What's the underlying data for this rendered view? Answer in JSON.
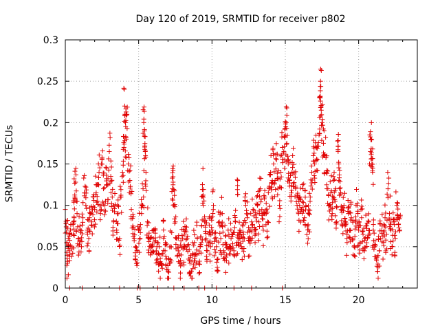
{
  "chart_data": {
    "type": "scatter",
    "title": "Day 120 of 2019, SRMTID for receiver p802",
    "xlabel": "GPS time / hours",
    "ylabel": "SRMTID / TECUs",
    "xlim": [
      0,
      24
    ],
    "ylim": [
      0,
      0.3
    ],
    "xticks": [
      0,
      5,
      10,
      15,
      20
    ],
    "yticks": [
      0,
      0.05,
      0.1,
      0.15,
      0.2,
      0.25,
      0.3
    ],
    "ytick_labels": [
      "0",
      "0.05",
      "0.1",
      "0.15",
      "0.2",
      "0.25",
      "0.3"
    ],
    "grid": true,
    "marker": "+",
    "color": "#e00000",
    "series": [
      {
        "name": "SRMTID",
        "points": [
          [
            0.05,
            0.078
          ],
          [
            0.1,
            0.055
          ],
          [
            0.15,
            0.03
          ],
          [
            0.2,
            0.06
          ],
          [
            0.3,
            0.045
          ],
          [
            0.35,
            0.07
          ],
          [
            0.45,
            0.05
          ],
          [
            0.55,
            0.065
          ],
          [
            0.6,
            0.085
          ],
          [
            0.65,
            0.11
          ],
          [
            0.7,
            0.128
          ],
          [
            0.8,
            0.09
          ],
          [
            0.9,
            0.06
          ],
          [
            1.0,
            0.075
          ],
          [
            1.1,
            0.05
          ],
          [
            1.2,
            0.085
          ],
          [
            1.3,
            0.115
          ],
          [
            1.4,
            0.1
          ],
          [
            1.5,
            0.07
          ],
          [
            1.6,
            0.06
          ],
          [
            1.7,
            0.09
          ],
          [
            1.8,
            0.08
          ],
          [
            1.9,
            0.11
          ],
          [
            2.0,
            0.095
          ],
          [
            2.1,
            0.125
          ],
          [
            2.2,
            0.105
          ],
          [
            2.3,
            0.14
          ],
          [
            2.4,
            0.09
          ],
          [
            2.5,
            0.155
          ],
          [
            2.6,
            0.12
          ],
          [
            2.7,
            0.1
          ],
          [
            2.8,
            0.145
          ],
          [
            2.9,
            0.125
          ],
          [
            3.0,
            0.165
          ],
          [
            3.1,
            0.135
          ],
          [
            3.2,
            0.11
          ],
          [
            3.3,
            0.08
          ],
          [
            3.4,
            0.1
          ],
          [
            3.5,
            0.07
          ],
          [
            3.6,
            0.09
          ],
          [
            3.7,
            0.06
          ],
          [
            3.8,
            0.11
          ],
          [
            3.9,
            0.14
          ],
          [
            4.0,
            0.17
          ],
          [
            4.05,
            0.22
          ],
          [
            4.1,
            0.2
          ],
          [
            4.15,
            0.18
          ],
          [
            4.2,
            0.21
          ],
          [
            4.3,
            0.15
          ],
          [
            4.4,
            0.13
          ],
          [
            4.5,
            0.095
          ],
          [
            4.6,
            0.075
          ],
          [
            4.7,
            0.06
          ],
          [
            4.8,
            0.05
          ],
          [
            4.9,
            0.045
          ],
          [
            5.0,
            0.07
          ],
          [
            5.1,
            0.06
          ],
          [
            5.2,
            0.09
          ],
          [
            5.3,
            0.12
          ],
          [
            5.35,
            0.2
          ],
          [
            5.4,
            0.19
          ],
          [
            5.45,
            0.165
          ],
          [
            5.5,
            0.14
          ],
          [
            5.6,
            0.08
          ],
          [
            5.7,
            0.06
          ],
          [
            5.8,
            0.04
          ],
          [
            5.9,
            0.05
          ],
          [
            6.0,
            0.06
          ],
          [
            6.1,
            0.07
          ],
          [
            6.2,
            0.045
          ],
          [
            6.3,
            0.035
          ],
          [
            6.4,
            0.05
          ],
          [
            6.5,
            0.03
          ],
          [
            6.6,
            0.04
          ],
          [
            6.7,
            0.06
          ],
          [
            6.8,
            0.045
          ],
          [
            6.9,
            0.035
          ],
          [
            7.0,
            0.02
          ],
          [
            7.1,
            0.03
          ],
          [
            7.2,
            0.05
          ],
          [
            7.3,
            0.12
          ],
          [
            7.35,
            0.128
          ],
          [
            7.4,
            0.1
          ],
          [
            7.5,
            0.08
          ],
          [
            7.6,
            0.06
          ],
          [
            7.7,
            0.045
          ],
          [
            7.8,
            0.03
          ],
          [
            7.9,
            0.04
          ],
          [
            8.0,
            0.06
          ],
          [
            8.1,
            0.05
          ],
          [
            8.2,
            0.07
          ],
          [
            8.3,
            0.06
          ],
          [
            8.4,
            0.035
          ],
          [
            8.5,
            0.03
          ],
          [
            8.6,
            0.02
          ],
          [
            8.7,
            0.04
          ],
          [
            8.8,
            0.055
          ],
          [
            8.9,
            0.04
          ],
          [
            9.0,
            0.06
          ],
          [
            9.1,
            0.03
          ],
          [
            9.2,
            0.05
          ],
          [
            9.3,
            0.075
          ],
          [
            9.35,
            0.125
          ],
          [
            9.4,
            0.1
          ],
          [
            9.5,
            0.08
          ],
          [
            9.6,
            0.06
          ],
          [
            9.7,
            0.045
          ],
          [
            9.8,
            0.065
          ],
          [
            9.9,
            0.05
          ],
          [
            10.0,
            0.07
          ],
          [
            10.1,
            0.1
          ],
          [
            10.2,
            0.06
          ],
          [
            10.3,
            0.05
          ],
          [
            10.4,
            0.035
          ],
          [
            10.5,
            0.08
          ],
          [
            10.6,
            0.06
          ],
          [
            10.7,
            0.09
          ],
          [
            10.8,
            0.045
          ],
          [
            10.9,
            0.055
          ],
          [
            11.0,
            0.04
          ],
          [
            11.1,
            0.07
          ],
          [
            11.2,
            0.05
          ],
          [
            11.3,
            0.06
          ],
          [
            11.4,
            0.065
          ],
          [
            11.5,
            0.045
          ],
          [
            11.6,
            0.08
          ],
          [
            11.7,
            0.055
          ],
          [
            11.75,
            0.13
          ],
          [
            11.8,
            0.06
          ],
          [
            11.9,
            0.07
          ],
          [
            12.0,
            0.05
          ],
          [
            12.1,
            0.075
          ],
          [
            12.2,
            0.06
          ],
          [
            12.3,
            0.1
          ],
          [
            12.4,
            0.085
          ],
          [
            12.5,
            0.06
          ],
          [
            12.6,
            0.07
          ],
          [
            12.7,
            0.08
          ],
          [
            12.8,
            0.095
          ],
          [
            12.9,
            0.07
          ],
          [
            13.0,
            0.085
          ],
          [
            13.1,
            0.1
          ],
          [
            13.2,
            0.08
          ],
          [
            13.3,
            0.12
          ],
          [
            13.4,
            0.095
          ],
          [
            13.5,
            0.07
          ],
          [
            13.6,
            0.11
          ],
          [
            13.7,
            0.09
          ],
          [
            13.8,
            0.08
          ],
          [
            13.9,
            0.12
          ],
          [
            14.0,
            0.14
          ],
          [
            14.1,
            0.11
          ],
          [
            14.2,
            0.15
          ],
          [
            14.3,
            0.13
          ],
          [
            14.4,
            0.155
          ],
          [
            14.5,
            0.12
          ],
          [
            14.6,
            0.1
          ],
          [
            14.7,
            0.14
          ],
          [
            14.8,
            0.17
          ],
          [
            14.9,
            0.165
          ],
          [
            15.0,
            0.185
          ],
          [
            15.05,
            0.2
          ],
          [
            15.1,
            0.175
          ],
          [
            15.2,
            0.15
          ],
          [
            15.3,
            0.13
          ],
          [
            15.4,
            0.115
          ],
          [
            15.5,
            0.16
          ],
          [
            15.6,
            0.14
          ],
          [
            15.7,
            0.12
          ],
          [
            15.8,
            0.1
          ],
          [
            15.9,
            0.09
          ],
          [
            16.0,
            0.11
          ],
          [
            16.1,
            0.095
          ],
          [
            16.2,
            0.12
          ],
          [
            16.3,
            0.085
          ],
          [
            16.4,
            0.1
          ],
          [
            16.5,
            0.075
          ],
          [
            16.6,
            0.09
          ],
          [
            16.7,
            0.11
          ],
          [
            16.8,
            0.14
          ],
          [
            16.9,
            0.16
          ],
          [
            17.0,
            0.15
          ],
          [
            17.1,
            0.17
          ],
          [
            17.2,
            0.155
          ],
          [
            17.3,
            0.185
          ],
          [
            17.35,
            0.23
          ],
          [
            17.4,
            0.25
          ],
          [
            17.45,
            0.215
          ],
          [
            17.5,
            0.2
          ],
          [
            17.6,
            0.175
          ],
          [
            17.7,
            0.16
          ],
          [
            17.8,
            0.14
          ],
          [
            17.9,
            0.12
          ],
          [
            18.0,
            0.1
          ],
          [
            18.1,
            0.115
          ],
          [
            18.2,
            0.09
          ],
          [
            18.3,
            0.13
          ],
          [
            18.4,
            0.105
          ],
          [
            18.5,
            0.08
          ],
          [
            18.6,
            0.165
          ],
          [
            18.65,
            0.15
          ],
          [
            18.7,
            0.12
          ],
          [
            18.8,
            0.095
          ],
          [
            18.9,
            0.075
          ],
          [
            19.0,
            0.1
          ],
          [
            19.1,
            0.08
          ],
          [
            19.2,
            0.06
          ],
          [
            19.3,
            0.09
          ],
          [
            19.4,
            0.07
          ],
          [
            19.5,
            0.085
          ],
          [
            19.6,
            0.06
          ],
          [
            19.7,
            0.05
          ],
          [
            19.8,
            0.08
          ],
          [
            19.9,
            0.1
          ],
          [
            20.0,
            0.07
          ],
          [
            20.1,
            0.055
          ],
          [
            20.2,
            0.085
          ],
          [
            20.3,
            0.065
          ],
          [
            20.4,
            0.045
          ],
          [
            20.5,
            0.075
          ],
          [
            20.6,
            0.06
          ],
          [
            20.7,
            0.08
          ],
          [
            20.8,
            0.165
          ],
          [
            20.85,
            0.18
          ],
          [
            20.9,
            0.15
          ],
          [
            20.95,
            0.14
          ],
          [
            21.0,
            0.07
          ],
          [
            21.1,
            0.05
          ],
          [
            21.2,
            0.035
          ],
          [
            21.3,
            0.02
          ],
          [
            21.4,
            0.045
          ],
          [
            21.5,
            0.06
          ],
          [
            21.6,
            0.075
          ],
          [
            21.7,
            0.055
          ],
          [
            21.8,
            0.085
          ],
          [
            21.9,
            0.065
          ],
          [
            22.0,
            0.12
          ],
          [
            22.1,
            0.09
          ],
          [
            22.2,
            0.07
          ],
          [
            22.3,
            0.05
          ],
          [
            22.4,
            0.08
          ],
          [
            22.5,
            0.06
          ],
          [
            22.6,
            0.1
          ],
          [
            22.7,
            0.085
          ],
          [
            22.8,
            0.07
          ]
        ],
        "baseline_points": [
          0.3,
          1.15,
          3.7,
          4.9,
          5.1,
          6.3,
          7.4,
          8.1,
          9.1,
          9.5,
          10.3,
          11.5,
          12.7,
          14.8
        ]
      }
    ]
  }
}
